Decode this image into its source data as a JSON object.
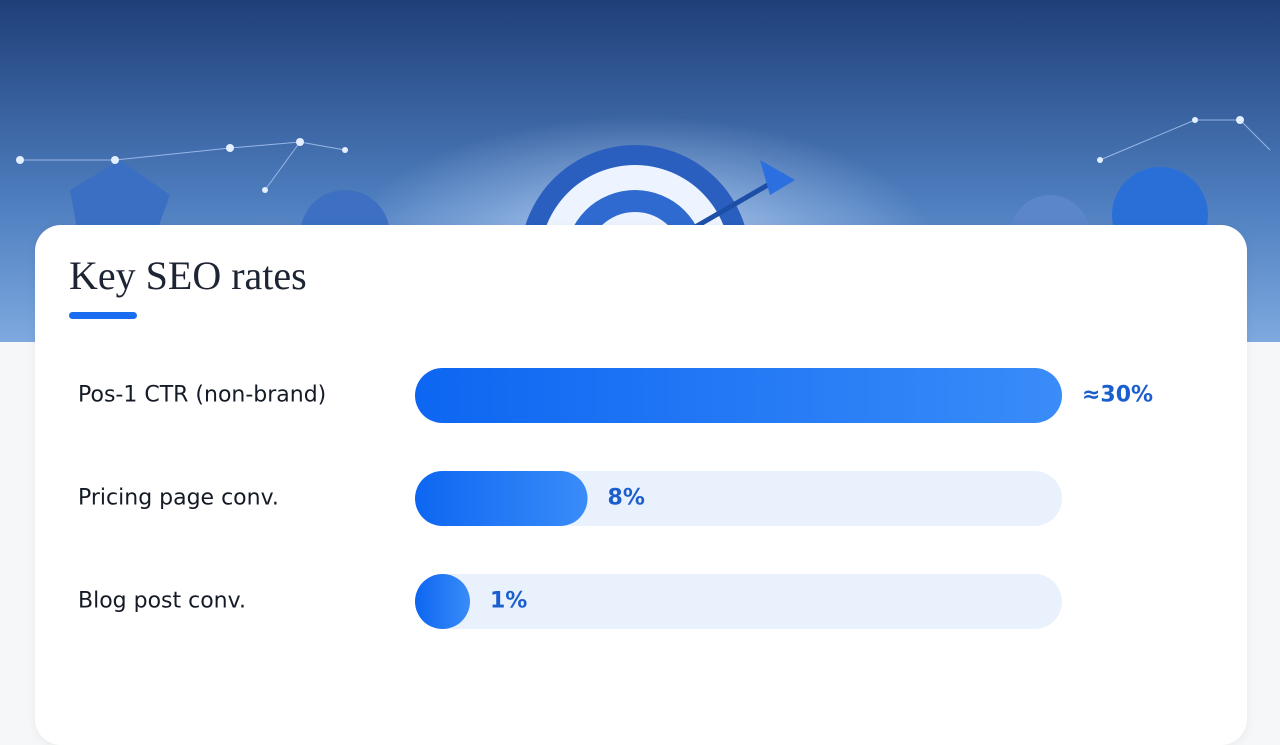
{
  "chart_data": {
    "type": "bar",
    "orientation": "horizontal",
    "title": "Key SEO rates",
    "categories": [
      "Pos-1 CTR (non-brand)",
      "Pricing page conv.",
      "Blog post conv."
    ],
    "values": [
      30,
      8,
      1
    ],
    "value_labels": [
      "≈30%",
      "8%",
      "1%"
    ],
    "color": "#1a6cf0",
    "xlim": [
      0,
      30
    ]
  }
}
